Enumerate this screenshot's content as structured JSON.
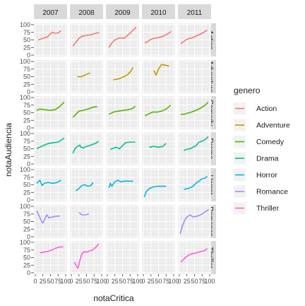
{
  "chart_data": {
    "type": "line",
    "facet_rows_var": "genero",
    "facet_cols_var": "year",
    "xlabel": "notaCritica",
    "ylabel": "notaAudiencia",
    "xlim": [
      0,
      100
    ],
    "ylim": [
      0,
      100
    ],
    "x_tick_labels": [
      "0",
      "25",
      "50",
      "75",
      "100"
    ],
    "y_tick_labels": [
      "0",
      "25",
      "50",
      "75",
      "100"
    ],
    "grid": true,
    "legend_title": "genero",
    "legend_position": "right",
    "columns": [
      "2007",
      "2008",
      "2009",
      "2010",
      "2011"
    ],
    "row_strip_labels": [
      "Action",
      "Adventure",
      "Comedy",
      "Drama",
      "Horror",
      "Romance",
      "Thriller"
    ],
    "series": [
      {
        "name": "Action",
        "color": "#F8766D"
      },
      {
        "name": "Adventure",
        "color": "#C49A00"
      },
      {
        "name": "Comedy",
        "color": "#53B400"
      },
      {
        "name": "Drama",
        "color": "#00C094"
      },
      {
        "name": "Horror",
        "color": "#00B6EB"
      },
      {
        "name": "Romance",
        "color": "#A58AFF"
      },
      {
        "name": "Thriller",
        "color": "#FB61D7"
      }
    ],
    "panels": {
      "Action": {
        "2007": [
          [
            10,
            50
          ],
          [
            25,
            55
          ],
          [
            40,
            60
          ],
          [
            55,
            75
          ],
          [
            65,
            72
          ],
          [
            75,
            73
          ],
          [
            85,
            80
          ]
        ],
        "2008": [
          [
            5,
            30
          ],
          [
            15,
            42
          ],
          [
            25,
            55
          ],
          [
            35,
            62
          ],
          [
            50,
            65
          ],
          [
            65,
            67
          ],
          [
            80,
            72
          ],
          [
            92,
            74
          ]
        ],
        "2009": [
          [
            5,
            25
          ],
          [
            15,
            40
          ],
          [
            25,
            50
          ],
          [
            40,
            57
          ],
          [
            55,
            55
          ],
          [
            70,
            68
          ],
          [
            85,
            82
          ],
          [
            95,
            92
          ]
        ],
        "2010": [
          [
            5,
            40
          ],
          [
            15,
            45
          ],
          [
            25,
            52
          ],
          [
            35,
            55
          ],
          [
            50,
            58
          ],
          [
            65,
            62
          ],
          [
            80,
            70
          ],
          [
            92,
            78
          ]
        ],
        "2011": [
          [
            5,
            38
          ],
          [
            15,
            45
          ],
          [
            25,
            52
          ],
          [
            35,
            55
          ],
          [
            45,
            58
          ],
          [
            60,
            65
          ],
          [
            75,
            72
          ],
          [
            92,
            82
          ]
        ]
      },
      "Adventure": {
        "2008": [
          [
            20,
            50
          ],
          [
            35,
            50
          ],
          [
            50,
            58
          ],
          [
            62,
            62
          ]
        ],
        "2009": [
          [
            20,
            40
          ],
          [
            35,
            42
          ],
          [
            50,
            48
          ],
          [
            65,
            55
          ],
          [
            75,
            65
          ],
          [
            85,
            80
          ]
        ],
        "2010": [
          [
            35,
            70
          ],
          [
            42,
            55
          ],
          [
            50,
            75
          ],
          [
            60,
            90
          ],
          [
            72,
            88
          ],
          [
            85,
            85
          ]
        ]
      },
      "Comedy": {
        "2007": [
          [
            5,
            58
          ],
          [
            15,
            62
          ],
          [
            30,
            60
          ],
          [
            50,
            58
          ],
          [
            65,
            60
          ],
          [
            80,
            70
          ],
          [
            95,
            85
          ]
        ],
        "2008": [
          [
            5,
            35
          ],
          [
            15,
            45
          ],
          [
            25,
            55
          ],
          [
            40,
            58
          ],
          [
            55,
            62
          ],
          [
            70,
            68
          ],
          [
            85,
            70
          ]
        ],
        "2009": [
          [
            5,
            45
          ],
          [
            20,
            52
          ],
          [
            35,
            55
          ],
          [
            55,
            58
          ],
          [
            70,
            60
          ],
          [
            85,
            65
          ],
          [
            92,
            72
          ]
        ],
        "2010": [
          [
            5,
            40
          ],
          [
            15,
            45
          ],
          [
            30,
            52
          ],
          [
            45,
            52
          ],
          [
            60,
            55
          ],
          [
            75,
            62
          ],
          [
            90,
            75
          ]
        ],
        "2011": [
          [
            5,
            45
          ],
          [
            15,
            45
          ],
          [
            25,
            48
          ],
          [
            40,
            52
          ],
          [
            55,
            58
          ],
          [
            70,
            65
          ],
          [
            85,
            75
          ],
          [
            95,
            85
          ]
        ]
      },
      "Drama": {
        "2007": [
          [
            5,
            50
          ],
          [
            15,
            55
          ],
          [
            30,
            62
          ],
          [
            45,
            68
          ],
          [
            60,
            70
          ],
          [
            75,
            72
          ],
          [
            85,
            78
          ],
          [
            95,
            85
          ]
        ],
        "2008": [
          [
            5,
            35
          ],
          [
            12,
            50
          ],
          [
            20,
            58
          ],
          [
            28,
            62
          ],
          [
            32,
            55
          ],
          [
            40,
            52
          ],
          [
            50,
            58
          ],
          [
            65,
            62
          ],
          [
            80,
            68
          ],
          [
            90,
            75
          ]
        ],
        "2009": [
          [
            10,
            48
          ],
          [
            20,
            52
          ],
          [
            30,
            55
          ],
          [
            40,
            50
          ],
          [
            50,
            60
          ],
          [
            60,
            70
          ],
          [
            75,
            72
          ],
          [
            92,
            72
          ]
        ],
        "2010": [
          [
            20,
            55
          ],
          [
            35,
            58
          ],
          [
            50,
            55
          ],
          [
            65,
            58
          ],
          [
            75,
            68
          ]
        ],
        "2011": [
          [
            15,
            45
          ],
          [
            25,
            48
          ],
          [
            35,
            50
          ],
          [
            45,
            55
          ],
          [
            55,
            60
          ],
          [
            65,
            72
          ],
          [
            75,
            75
          ],
          [
            85,
            80
          ],
          [
            95,
            90
          ]
        ]
      },
      "Horror": {
        "2007": [
          [
            5,
            55
          ],
          [
            15,
            65
          ],
          [
            22,
            48
          ],
          [
            30,
            55
          ],
          [
            42,
            58
          ],
          [
            55,
            55
          ],
          [
            70,
            57
          ],
          [
            85,
            65
          ]
        ],
        "2008": [
          [
            15,
            30
          ],
          [
            25,
            38
          ],
          [
            35,
            48
          ],
          [
            45,
            50
          ],
          [
            55,
            45
          ],
          [
            65,
            48
          ],
          [
            72,
            58
          ]
        ],
        "2009": [
          [
            5,
            40
          ],
          [
            10,
            55
          ],
          [
            15,
            45
          ],
          [
            25,
            60
          ],
          [
            35,
            65
          ],
          [
            45,
            60
          ],
          [
            55,
            62
          ],
          [
            70,
            62
          ],
          [
            85,
            62
          ]
        ],
        "2010": [
          [
            3,
            10
          ],
          [
            10,
            28
          ],
          [
            20,
            38
          ],
          [
            30,
            42
          ],
          [
            45,
            45
          ],
          [
            60,
            45
          ],
          [
            75,
            45
          ]
        ],
        "2011": [
          [
            15,
            35
          ],
          [
            30,
            38
          ],
          [
            45,
            45
          ],
          [
            55,
            55
          ],
          [
            65,
            62
          ],
          [
            75,
            70
          ],
          [
            85,
            72
          ],
          [
            92,
            78
          ]
        ]
      },
      "Romance": {
        "2007": [
          [
            5,
            85
          ],
          [
            12,
            70
          ],
          [
            20,
            52
          ],
          [
            25,
            45
          ],
          [
            32,
            60
          ],
          [
            38,
            72
          ],
          [
            45,
            62
          ],
          [
            55,
            65
          ],
          [
            70,
            68
          ],
          [
            80,
            68
          ]
        ],
        "2008": [
          [
            25,
            80
          ],
          [
            35,
            72
          ],
          [
            48,
            72
          ],
          [
            58,
            75
          ]
        ],
        "2011": [
          [
            3,
            10
          ],
          [
            10,
            35
          ],
          [
            18,
            55
          ],
          [
            25,
            65
          ],
          [
            35,
            72
          ],
          [
            45,
            65
          ],
          [
            60,
            68
          ],
          [
            75,
            75
          ],
          [
            90,
            85
          ],
          [
            97,
            90
          ]
        ]
      },
      "Thriller": {
        "2007": [
          [
            15,
            65
          ],
          [
            25,
            68
          ],
          [
            40,
            70
          ],
          [
            55,
            75
          ],
          [
            65,
            80
          ],
          [
            80,
            85
          ],
          [
            92,
            85
          ]
        ],
        "2008": [
          [
            10,
            35
          ],
          [
            18,
            20
          ],
          [
            22,
            15
          ],
          [
            28,
            40
          ],
          [
            35,
            62
          ],
          [
            42,
            70
          ],
          [
            50,
            68
          ],
          [
            60,
            72
          ],
          [
            70,
            75
          ],
          [
            82,
            85
          ],
          [
            90,
            95
          ]
        ],
        "2011": [
          [
            5,
            35
          ],
          [
            12,
            42
          ],
          [
            20,
            50
          ],
          [
            30,
            58
          ],
          [
            40,
            62
          ],
          [
            55,
            65
          ],
          [
            70,
            70
          ],
          [
            82,
            72
          ],
          [
            92,
            80
          ]
        ]
      }
    }
  }
}
